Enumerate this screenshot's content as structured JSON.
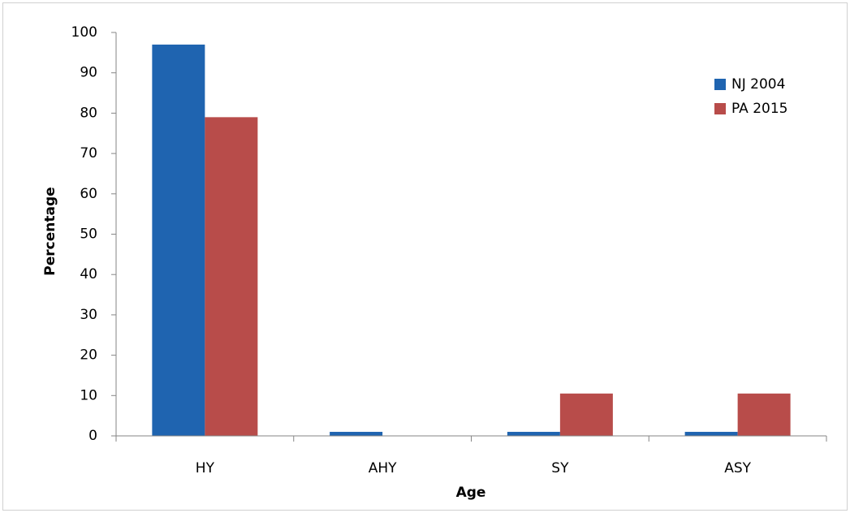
{
  "chart_data": {
    "type": "bar",
    "x_label": "Age",
    "y_label": "Percentage",
    "categories": [
      "HY",
      "AHY",
      "SY",
      "ASY"
    ],
    "series": [
      {
        "name": "NJ 2004",
        "color": "#1f64b0",
        "values": [
          97,
          1,
          1,
          1
        ]
      },
      {
        "name": "PA 2015",
        "color": "#b84c4a",
        "values": [
          79,
          0,
          10.5,
          10.5
        ]
      }
    ],
    "ylim": [
      0,
      100
    ],
    "yticks": [
      0,
      10,
      20,
      30,
      40,
      50,
      60,
      70,
      80,
      90,
      100
    ],
    "grid": false,
    "legend": "upper right"
  }
}
